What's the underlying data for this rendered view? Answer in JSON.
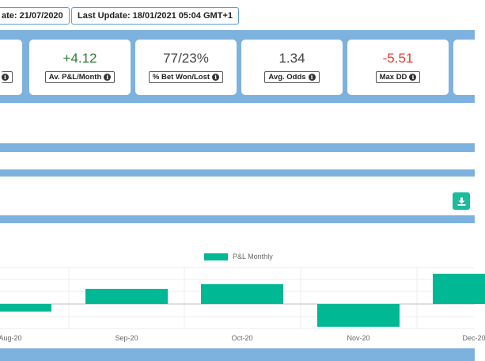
{
  "header": {
    "start_date": "ate: 21/07/2020",
    "last_update": "Last Update: 18/01/2021 05:04 GMT+1"
  },
  "stats": [
    {
      "value": "+4.12",
      "label": "Av. P&L/Month",
      "tone": "green"
    },
    {
      "value": "77/23%",
      "label": "% Bet Won/Lost",
      "tone": "neutral"
    },
    {
      "value": "1.34",
      "label": "Avg. Odds",
      "tone": "neutral"
    },
    {
      "value": "-5.51",
      "label": "Max DD",
      "tone": "red"
    }
  ],
  "colors": {
    "band": "#7eb2de",
    "bar": "#00b894",
    "positive": "#2e7d32",
    "negative": "#e53935",
    "button": "#1abc9c"
  },
  "icons": {
    "info": "info-circle-icon",
    "download": "download-icon"
  },
  "chart_data": {
    "type": "bar",
    "categories": [
      "Aug-20",
      "Sep-20",
      "Oct-20",
      "Nov-20",
      "Dec-20"
    ],
    "series": [
      {
        "name": "P&L Monthly",
        "values": [
          -3,
          6.5,
          8.5,
          -9,
          13
        ]
      }
    ],
    "ylim": [
      -10,
      16
    ],
    "grid": true,
    "legend": "top-center"
  }
}
